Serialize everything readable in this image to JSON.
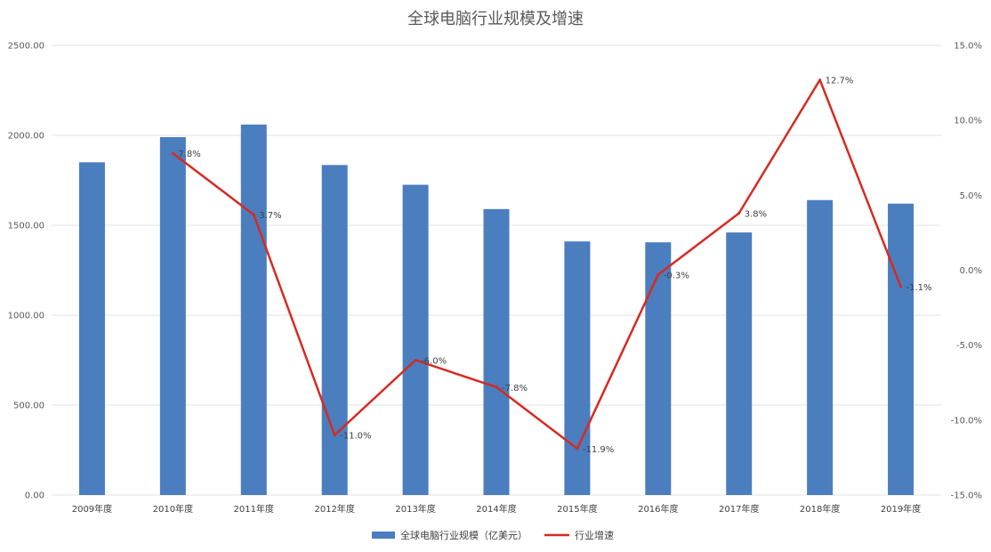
{
  "chart_data": {
    "type": "bar",
    "title": "全球电脑行业规模及增速",
    "categories": [
      "2009年度",
      "2010年度",
      "2011年度",
      "2012年度",
      "2013年度",
      "2014年度",
      "2015年度",
      "2016年度",
      "2017年度",
      "2018年度",
      "2019年度"
    ],
    "series": [
      {
        "name": "全球电脑行业规模（亿美元）",
        "type": "bar",
        "axis": "left",
        "color": "#4a7ebf",
        "values": [
          1850,
          1990,
          2060,
          1835,
          1725,
          1590,
          1410,
          1405,
          1460,
          1640,
          1620
        ]
      },
      {
        "name": "行业增速",
        "type": "line",
        "axis": "right",
        "color": "#d62a22",
        "values": [
          null,
          7.8,
          3.7,
          -11.0,
          -6.0,
          -7.8,
          -11.9,
          -0.3,
          3.8,
          12.7,
          -1.1
        ],
        "labels": [
          "",
          "7.8%",
          "3.7%",
          "-11.0%",
          "-6.0%",
          "-7.8%",
          "-11.9%",
          "-0.3%",
          "3.8%",
          "12.7%",
          "-1.1%"
        ]
      }
    ],
    "left_axis": {
      "min": 0,
      "max": 2500,
      "ticks": [
        0,
        500,
        1000,
        1500,
        2000,
        2500
      ],
      "tick_labels": [
        "0.00",
        "500.00",
        "1000.00",
        "1500.00",
        "2000.00",
        "2500.00"
      ]
    },
    "right_axis": {
      "min": -15,
      "max": 15,
      "ticks": [
        -15,
        -10,
        -5,
        0,
        5,
        10,
        15
      ],
      "tick_labels": [
        "-15.0%",
        "-10.0%",
        "-5.0%",
        "0.0%",
        "5.0%",
        "10.0%",
        "15.0%"
      ]
    },
    "grid": true,
    "legend": "bottom"
  }
}
